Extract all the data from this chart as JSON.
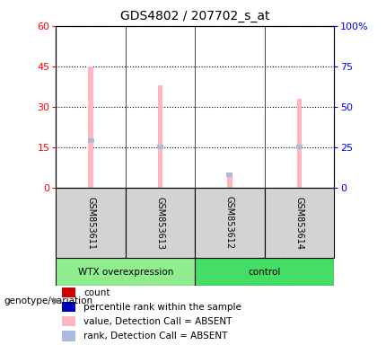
{
  "title": "GDS4802 / 207702_s_at",
  "samples": [
    "GSM853611",
    "GSM853613",
    "GSM853612",
    "GSM853614"
  ],
  "value_absent": [
    45,
    38,
    5,
    33
  ],
  "rank_absent": [
    29,
    25,
    8,
    25
  ],
  "ylim_left": [
    0,
    60
  ],
  "ylim_right": [
    0,
    100
  ],
  "yticks_left": [
    0,
    15,
    30,
    45,
    60
  ],
  "yticks_right": [
    0,
    25,
    50,
    75,
    100
  ],
  "ytick_labels_left": [
    "0",
    "15",
    "30",
    "45",
    "60"
  ],
  "ytick_labels_right": [
    "0",
    "25",
    "50",
    "75",
    "100%"
  ],
  "bar_color_absent": "#FFB6C1",
  "rank_color_absent": "#AABBDD",
  "group1_label": "WTX overexpression",
  "group2_label": "control",
  "group1_bg": "#90EE90",
  "group2_bg": "#44DD66",
  "genotype_label": "genotype/variation",
  "legend_items": [
    {
      "color": "#CC0000",
      "label": "count"
    },
    {
      "color": "#0000BB",
      "label": "percentile rank within the sample"
    },
    {
      "color": "#FFB6C1",
      "label": "value, Detection Call = ABSENT"
    },
    {
      "color": "#AABBDD",
      "label": "rank, Detection Call = ABSENT"
    }
  ]
}
